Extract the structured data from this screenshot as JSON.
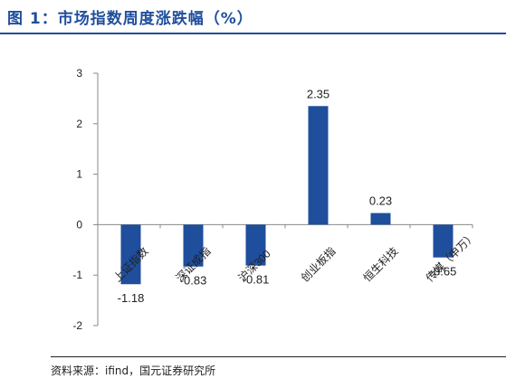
{
  "title": "图 1：市场指数周度涨跌幅（%）",
  "source": "资料来源：ifind，国元证券研究所",
  "colors": {
    "bar": "#1f4e9c",
    "title": "#1f4e9c",
    "axis": "#888888"
  },
  "chart_data": {
    "type": "bar",
    "categories": [
      "上证指数",
      "深证成指",
      "沪深300",
      "创业板指",
      "恒生科技",
      "传媒（申万）"
    ],
    "values": [
      -1.18,
      -0.83,
      -0.81,
      2.35,
      0.23,
      -0.65
    ],
    "data_labels": [
      "-1.18",
      "-0.83",
      "-0.81",
      "2.35",
      "0.23",
      "-0.65"
    ],
    "yticks": [
      "-2",
      "-1",
      "0",
      "1",
      "2",
      "3"
    ],
    "ylim": [
      -2,
      3
    ],
    "grid": false,
    "legend": false
  }
}
